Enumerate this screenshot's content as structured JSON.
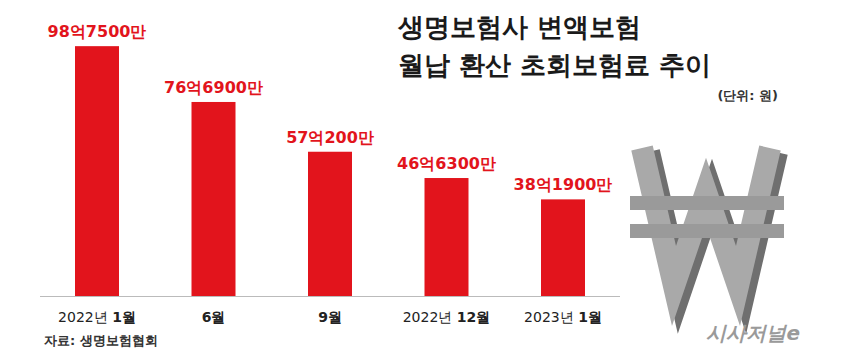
{
  "chart_data": {
    "type": "bar",
    "title": [
      "생명보험사 변액보험",
      "월납 환산 초회보험료 추이"
    ],
    "subtitle": "(단위: 원)",
    "annotations": [
      "자료: 생명보험협회",
      "시사저널e"
    ],
    "categories": [
      "2022년 1월",
      "6월",
      "9월",
      "2022년 12월",
      "2023년 1월"
    ],
    "values": [
      9875000000,
      7669000000,
      5702000000,
      4663000000,
      3819000000
    ],
    "value_labels": [
      "98억7500만",
      "76억6900만",
      "57억200만",
      "46억6300만",
      "38억1900만"
    ],
    "color": "#e2141c",
    "ylim": [
      0,
      10000000000
    ],
    "data_labels": true,
    "tick_labels": "x"
  }
}
